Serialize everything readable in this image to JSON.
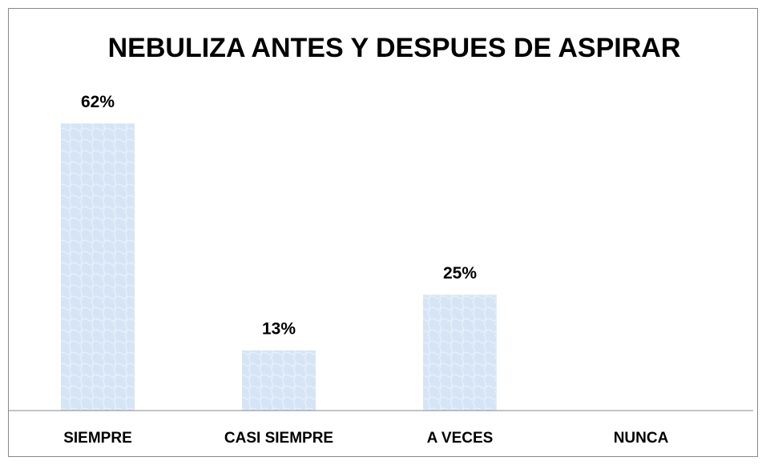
{
  "chart_data": {
    "type": "bar",
    "title": "NEBULIZA ANTES Y DESPUES DE ASPIRAR",
    "categories": [
      "SIEMPRE",
      "CASI SIEMPRE",
      "A VECES",
      "NUNCA"
    ],
    "values": [
      62,
      13,
      25,
      0
    ],
    "value_labels": [
      "62%",
      "13%",
      "25%",
      null
    ],
    "color": "#d5e5f5",
    "ylim": [
      0,
      70
    ]
  }
}
